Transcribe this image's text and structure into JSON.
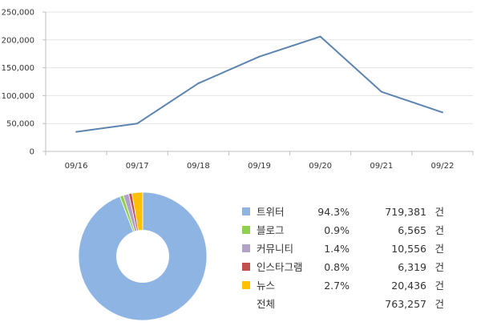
{
  "chart_data": [
    {
      "type": "line",
      "categories": [
        "09/16",
        "09/17",
        "09/18",
        "09/19",
        "09/20",
        "09/21",
        "09/22"
      ],
      "values": [
        35000,
        50000,
        122000,
        170000,
        206000,
        107000,
        70000
      ],
      "ylim": [
        0,
        250000
      ],
      "yticks": [
        0,
        50000,
        100000,
        150000,
        200000,
        250000
      ],
      "ytick_labels": [
        "0",
        "50,000",
        "100,000",
        "150,000",
        "200,000",
        "250,000"
      ],
      "grid": true,
      "colors": {
        "line": "#5b85b0"
      }
    },
    {
      "type": "pie",
      "donut": true,
      "labels": [
        "트위터",
        "블로그",
        "커뮤니티",
        "인스타그램",
        "뉴스"
      ],
      "values": [
        94.3,
        0.9,
        1.4,
        0.8,
        2.7
      ],
      "colors": [
        "#8eb4e3",
        "#8fd14f",
        "#b3a2c7",
        "#c0504d",
        "#ffc000"
      ],
      "legend_position": "right"
    }
  ],
  "legend": {
    "rows": [
      {
        "label": "트위터",
        "pct": "94.3%",
        "count": "719,381",
        "unit": "건",
        "color": "#8eb4e3"
      },
      {
        "label": "블로그",
        "pct": "0.9%",
        "count": "6,565",
        "unit": "건",
        "color": "#8fd14f"
      },
      {
        "label": "커뮤니티",
        "pct": "1.4%",
        "count": "10,556",
        "unit": "건",
        "color": "#b3a2c7"
      },
      {
        "label": "인스타그램",
        "pct": "0.8%",
        "count": "6,319",
        "unit": "건",
        "color": "#c0504d"
      },
      {
        "label": "뉴스",
        "pct": "2.7%",
        "count": "20,436",
        "unit": "건",
        "color": "#ffc000"
      }
    ],
    "total": {
      "label": "전체",
      "count": "763,257",
      "unit": "건"
    }
  }
}
